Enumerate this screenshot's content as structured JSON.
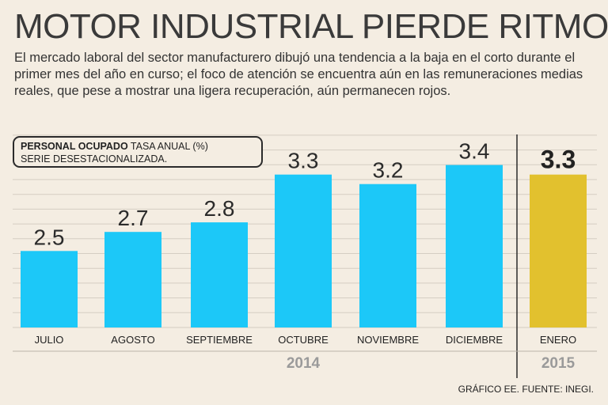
{
  "header": {
    "title": "MOTOR INDUSTRIAL PIERDE RITMO",
    "subtitle": "El mercado laboral del sector manufacturero dibujó una tendencia a la baja en el corto durante el primer mes del año en curso; el foco de atención se encuentra aún en las remuneraciones medias reales, que pese a mostrar una ligera recuperación, aún permanecen rojos."
  },
  "legend": {
    "bold": "PERSONAL OCUPADO",
    "rest": " TASA ANUAL (%)",
    "line2": "SERIE DESESTACIONALIZADA."
  },
  "credit": "GRÁFICO EE. FUENTE: INEGI.",
  "colors": {
    "bar": "#1cc8f8",
    "highlight": "#e2c12e",
    "background": "#f4ede2",
    "grid": "#d5cdc2"
  },
  "chart_data": {
    "type": "bar",
    "title": "PERSONAL OCUPADO TASA ANUAL (%) SERIE DESESTACIONALIZADA.",
    "categories": [
      "JULIO",
      "AGOSTO",
      "SEPTIEMBRE",
      "OCTUBRE",
      "NOVIEMBRE",
      "DICIEMBRE",
      "ENERO"
    ],
    "values": [
      2.5,
      2.7,
      2.8,
      3.3,
      3.2,
      3.4,
      3.3
    ],
    "value_labels": [
      "2.5",
      "2.7",
      "2.8",
      "3.3",
      "3.2",
      "3.4",
      "3.3"
    ],
    "highlight_index": 6,
    "groups": [
      {
        "label": "2014",
        "start": 0,
        "end": 5
      },
      {
        "label": "2015",
        "start": 6,
        "end": 6
      }
    ],
    "xlabel": "",
    "ylabel": "",
    "ylim": [
      1.7,
      3.5
    ],
    "grid": true
  }
}
